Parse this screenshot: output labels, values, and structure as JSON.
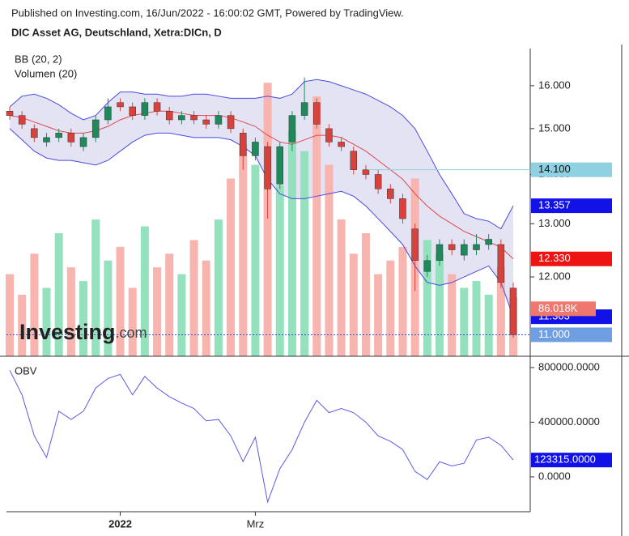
{
  "source": "Published on Investing.com, 16/Jun/2022 - 16:00:02 GMT, Powered by TradingView.",
  "watermark": {
    "brand": "Investing",
    "suffix": ".com"
  },
  "chart_data": [
    {
      "type": "candlestick",
      "title": "DIC Asset AG, Deutschland, Xetra:DICn, D",
      "categories": [
        null,
        null,
        null,
        null,
        null,
        null,
        null,
        null,
        null,
        "2022",
        null,
        null,
        null,
        null,
        null,
        null,
        null,
        null,
        null,
        null,
        "Mrz",
        null,
        null,
        null,
        null,
        null,
        null,
        null,
        null,
        null,
        null,
        null,
        null,
        null,
        null,
        null,
        null,
        null,
        null,
        null,
        null,
        null
      ],
      "open": [
        15.4,
        15.3,
        15.0,
        14.7,
        14.8,
        14.9,
        14.6,
        14.8,
        15.2,
        15.6,
        15.5,
        15.3,
        15.6,
        15.4,
        15.2,
        15.3,
        15.2,
        15.1,
        15.3,
        14.9,
        14.4,
        14.6,
        13.8,
        14.7,
        15.3,
        15.6,
        15.0,
        14.7,
        14.5,
        14.1,
        14.0,
        13.7,
        13.5,
        12.9,
        12.1,
        12.3,
        12.6,
        12.4,
        12.5,
        12.6,
        12.6,
        11.8
      ],
      "high": [
        15.5,
        15.4,
        15.1,
        14.9,
        15.0,
        15.0,
        14.9,
        15.3,
        15.7,
        15.7,
        15.6,
        15.7,
        15.7,
        15.5,
        15.4,
        15.4,
        15.3,
        15.4,
        15.4,
        15.0,
        14.8,
        14.7,
        14.7,
        15.4,
        16.2,
        15.7,
        15.1,
        14.8,
        14.6,
        14.2,
        14.1,
        13.8,
        13.6,
        13.0,
        12.4,
        12.7,
        12.7,
        12.7,
        12.8,
        12.8,
        12.7,
        11.9
      ],
      "low": [
        15.2,
        15.0,
        14.7,
        14.6,
        14.7,
        14.6,
        14.5,
        14.7,
        15.1,
        15.4,
        15.2,
        15.2,
        15.3,
        15.1,
        15.1,
        15.1,
        15.0,
        15.0,
        14.9,
        14.1,
        14.3,
        13.1,
        13.7,
        14.5,
        15.2,
        15.0,
        14.6,
        14.5,
        14.0,
        13.9,
        13.6,
        13.4,
        13.0,
        11.75,
        12.0,
        12.2,
        12.4,
        12.3,
        12.4,
        12.5,
        11.8,
        10.95
      ],
      "close": [
        15.3,
        15.1,
        14.8,
        14.8,
        14.9,
        14.7,
        14.8,
        15.2,
        15.5,
        15.5,
        15.3,
        15.6,
        15.4,
        15.2,
        15.3,
        15.2,
        15.1,
        15.3,
        15.0,
        14.4,
        14.7,
        13.7,
        14.6,
        15.3,
        15.6,
        15.1,
        14.7,
        14.6,
        14.1,
        14.0,
        13.7,
        13.5,
        13.1,
        12.3,
        12.3,
        12.6,
        12.5,
        12.6,
        12.6,
        12.7,
        11.9,
        11.0
      ],
      "up_color": "#1e8a5c",
      "down_color": "#d9413c",
      "bollinger": {
        "name": "BB (20, 2)",
        "band_color": "#e3e3f3",
        "outer_color": "#4a4ae0",
        "middle_color": "#e0474c",
        "upper": [
          15.5,
          15.75,
          15.8,
          15.7,
          15.55,
          15.35,
          15.2,
          15.3,
          15.6,
          15.85,
          15.85,
          15.8,
          15.8,
          15.75,
          15.75,
          15.8,
          15.8,
          15.75,
          15.7,
          15.7,
          15.7,
          15.75,
          15.7,
          15.8,
          16.1,
          16.15,
          16.1,
          16.0,
          15.9,
          15.8,
          15.65,
          15.5,
          15.3,
          15.0,
          14.5,
          14.0,
          13.6,
          13.2,
          13.1,
          13.05,
          12.9,
          13.357
        ],
        "middle": [
          15.3,
          15.25,
          15.15,
          15.05,
          14.95,
          14.9,
          14.9,
          14.95,
          15.05,
          15.2,
          15.3,
          15.35,
          15.4,
          15.4,
          15.35,
          15.3,
          15.3,
          15.3,
          15.25,
          15.15,
          15.05,
          14.85,
          14.7,
          14.65,
          14.75,
          14.85,
          14.85,
          14.8,
          14.65,
          14.5,
          14.3,
          14.1,
          13.9,
          13.6,
          13.35,
          13.15,
          13.0,
          12.85,
          12.75,
          12.65,
          12.55,
          12.33
        ],
        "lower": [
          15.0,
          14.75,
          14.5,
          14.35,
          14.3,
          14.3,
          14.25,
          14.2,
          14.3,
          14.5,
          14.7,
          14.85,
          14.9,
          14.9,
          14.85,
          14.8,
          14.8,
          14.8,
          14.75,
          14.6,
          14.4,
          13.9,
          13.6,
          13.5,
          13.5,
          13.55,
          13.6,
          13.65,
          13.55,
          13.35,
          13.1,
          12.85,
          12.6,
          12.2,
          11.9,
          11.85,
          11.9,
          12.0,
          12.1,
          12.2,
          11.9,
          11.303
        ]
      },
      "volume": {
        "name": "Volumen (20)",
        "up_color": "#93e2bd",
        "down_color": "#f8b4ae",
        "ylim": [
          0,
          450000
        ],
        "values": [
          120000,
          90000,
          150000,
          100000,
          180000,
          130000,
          110000,
          200000,
          140000,
          160000,
          100000,
          190000,
          130000,
          150000,
          120000,
          170000,
          140000,
          200000,
          260000,
          310000,
          280000,
          400000,
          250000,
          330000,
          300000,
          380000,
          280000,
          200000,
          150000,
          180000,
          120000,
          140000,
          160000,
          260000,
          170000,
          150000,
          120000,
          100000,
          110000,
          90000,
          130000,
          86018
        ],
        "last_label": "86.018K",
        "label_color": "#f0776e"
      },
      "log_scale": true,
      "ylim": [
        10.65,
        16.92
      ],
      "yticks": [
        {
          "value": 12,
          "label": "12.000"
        },
        {
          "value": 13,
          "label": "13.000"
        },
        {
          "value": 14,
          "label": "14.000"
        },
        {
          "value": 15,
          "label": "15.000"
        },
        {
          "value": 16,
          "label": "16.000"
        }
      ],
      "price_tags": [
        {
          "value": 14.1,
          "label": "14.100",
          "color": "#8fd0e2",
          "text_color": "#111",
          "line": "solid"
        },
        {
          "value": 13.357,
          "label": "13.357",
          "color": "#1212e8",
          "text_color": "#fff"
        },
        {
          "value": 12.33,
          "label": "12.330",
          "color": "#ee1414",
          "text_color": "#fff"
        },
        {
          "value": 11.303,
          "label": "11.303",
          "color": "#1212e8",
          "text_color": "#fff"
        },
        {
          "value": 11.0,
          "label": "11.000",
          "color": "#6f9fe2",
          "text_color": "#fff",
          "line": "dotted"
        }
      ]
    },
    {
      "type": "line",
      "title": "OBV",
      "color": "#5a5ae6",
      "values": [
        780000,
        600000,
        300000,
        142000,
        480000,
        420000,
        480000,
        650000,
        720000,
        750000,
        600000,
        735000,
        650000,
        587000,
        540000,
        500000,
        410000,
        420000,
        300000,
        112000,
        290000,
        -184000,
        60000,
        200000,
        400000,
        560000,
        470000,
        500000,
        470000,
        400000,
        300000,
        260000,
        200000,
        40000,
        -20000,
        110000,
        80000,
        100000,
        270000,
        290000,
        231000,
        123315
      ],
      "ylim": [
        -255000,
        853000
      ],
      "yticks": [
        {
          "value": 0,
          "label": "0.0000"
        },
        {
          "value": 400000,
          "label": "400000.0000"
        },
        {
          "value": 800000,
          "label": "800000.0000"
        }
      ],
      "last_label": "123315.0000",
      "label_color": "#1212e8"
    }
  ]
}
